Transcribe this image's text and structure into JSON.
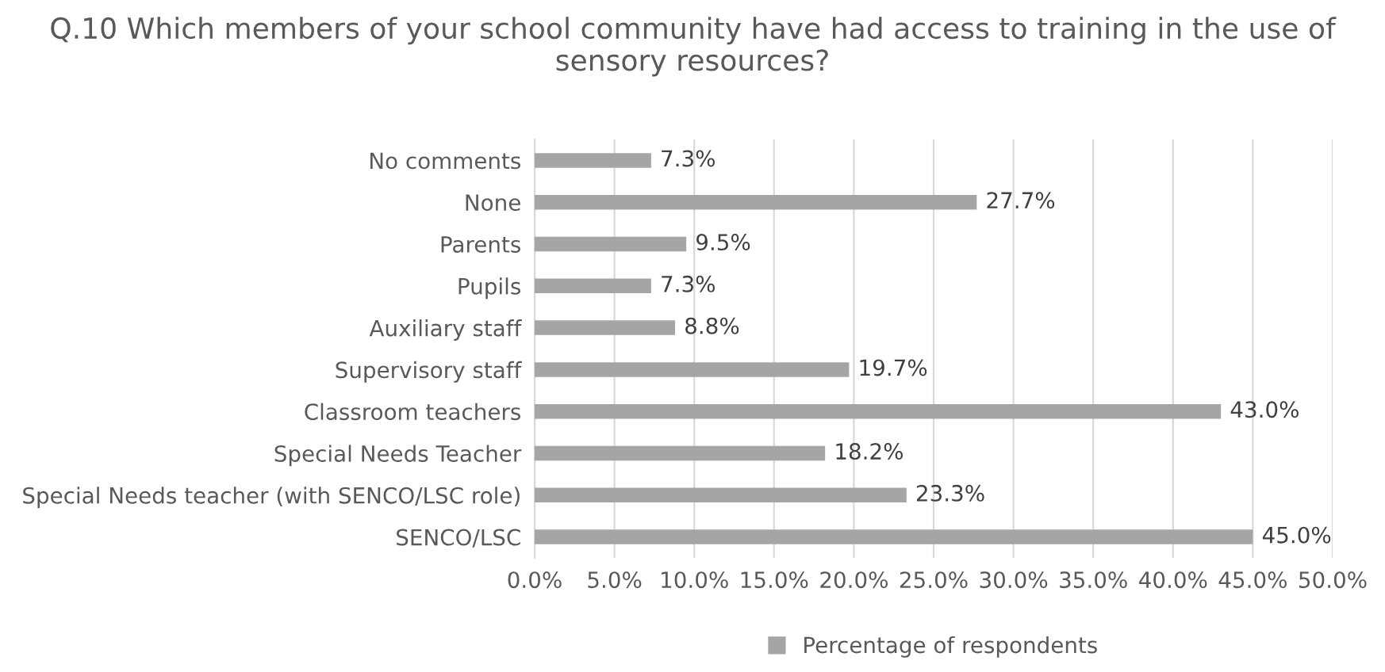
{
  "chart_data": {
    "type": "bar",
    "orientation": "horizontal",
    "title": "Q.10 Which members of your school community have had access to training in the use of sensory resources?",
    "categories": [
      "No comments",
      "None",
      "Parents",
      "Pupils",
      "Auxiliary staff",
      "Supervisory staff",
      "Classroom teachers",
      "Special Needs Teacher",
      "Special Needs teacher (with SENCO/LSC role)",
      "SENCO/LSC"
    ],
    "series": [
      {
        "name": "Percentage of respondents",
        "color": "#a5a5a5",
        "values": [
          7.3,
          27.7,
          9.5,
          7.3,
          8.8,
          19.7,
          43.0,
          18.2,
          23.3,
          45.0
        ],
        "value_labels": [
          "7.3%",
          "27.7%",
          "9.5%",
          "7.3%",
          "8.8%",
          "19.7%",
          "43.0%",
          "18.2%",
          "23.3%",
          "45.0%"
        ]
      }
    ],
    "xlim": [
      0,
      50
    ],
    "xticks": [
      {
        "value": 0,
        "label": "0.0%"
      },
      {
        "value": 5,
        "label": "5.0%"
      },
      {
        "value": 10,
        "label": "10.0%"
      },
      {
        "value": 15,
        "label": "15.0%"
      },
      {
        "value": 20,
        "label": "20.0%"
      },
      {
        "value": 25,
        "label": "25.0%"
      },
      {
        "value": 30,
        "label": "30.0%"
      },
      {
        "value": 35,
        "label": "35.0%"
      },
      {
        "value": 40,
        "label": "40.0%"
      },
      {
        "value": 45,
        "label": "45.0%"
      },
      {
        "value": 50,
        "label": "50.0%"
      }
    ],
    "grid": "x",
    "legend": "bottom"
  }
}
